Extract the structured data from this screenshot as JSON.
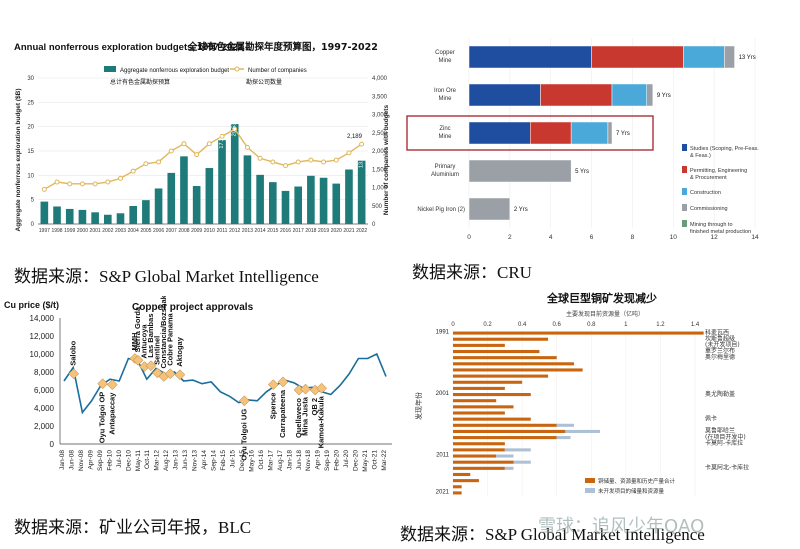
{
  "charts": {
    "exploration": {
      "title": "Annual nonferrous exploration budgets, 1997-2022",
      "title_cn": "全球有色金属勘探年度预算图，1997-2022",
      "legend_bar": "Aggregate nonferrous exploration budget",
      "legend_bar_cn": "总计有色金属勘探预算",
      "legend_line": "Number of companies",
      "legend_line_cn": "勘探公司数量",
      "ylabel_left": "Aggregate nonferrous exploration budget ($B)",
      "ylabel_right": "Number of companies with budgets",
      "annotation_peak": "20.53",
      "annotation_2022_bar": "13.01",
      "annotation_2022_line": "2,189",
      "annotation_mid": "17.23"
    },
    "cru": {
      "axis_max": "14",
      "legend": [
        "Studies (Scoping, Pre-Feas. & Feas.)",
        "Permitting, Engineering & Procurement",
        "Construction",
        "Commissioning",
        "Mining through to finished metal production"
      ]
    },
    "copper_price": {
      "ylabel": "Cu price ($/t)",
      "title": "Copper project approvals",
      "points_text": "",
      "approvals_count": "18"
    },
    "discovery": {
      "title": "全球巨型铜矿发现减少",
      "subtitle": "主要发现目前资源量（亿吨）",
      "ylabel": "发现年份",
      "legend": [
        "铜储量、资源量和历史产量合计",
        "未开发项目的储量和资源量"
      ]
    }
  },
  "chart_data": [
    {
      "type": "bar",
      "title": "Annual nonferrous exploration budgets, 1997-2022",
      "categories": [
        "1997",
        "1998",
        "1999",
        "2000",
        "2001",
        "2002",
        "2003",
        "2004",
        "2005",
        "2006",
        "2007",
        "2008",
        "2009",
        "2010",
        "2011",
        "2012",
        "2013",
        "2014",
        "2015",
        "2016",
        "2017",
        "2018",
        "2019",
        "2020",
        "2021",
        "2022"
      ],
      "series": [
        {
          "name": "Aggregate nonferrous exploration budget",
          "axis": "left",
          "values": [
            4.6,
            3.6,
            3.1,
            2.9,
            2.4,
            1.9,
            2.2,
            3.7,
            4.9,
            7.3,
            10.5,
            13.9,
            7.8,
            11.5,
            17.23,
            20.53,
            14.1,
            10.1,
            8.6,
            6.8,
            7.7,
            9.9,
            9.5,
            8.3,
            11.2,
            13.01
          ]
        },
        {
          "name": "Number of companies",
          "axis": "right",
          "type": "line",
          "values": [
            950,
            1150,
            1100,
            1100,
            1100,
            1150,
            1250,
            1450,
            1650,
            1700,
            2000,
            2200,
            1900,
            2200,
            2400,
            2600,
            2100,
            1800,
            1700,
            1600,
            1700,
            1750,
            1700,
            1750,
            1950,
            2189
          ]
        }
      ],
      "ylim_left": [
        0,
        30
      ],
      "ylim_right": [
        0,
        4000
      ],
      "source": "数据来源：S&P Global Market Intelligence"
    },
    {
      "type": "bar",
      "orientation": "horizontal-stacked",
      "categories": [
        "Copper Mine",
        "Iron Ore Mine",
        "Zinc Mine",
        "Primary Aluminium",
        "Nickel Pig Iron (2)"
      ],
      "series": [
        {
          "name": "Studies (Scoping, Pre-Feas. & Feas.)",
          "color": "#1f4ea0",
          "values": [
            6,
            3.5,
            3,
            0,
            0
          ]
        },
        {
          "name": "Permitting, Engineering & Procurement",
          "color": "#c8382e",
          "values": [
            4.5,
            3.5,
            2,
            0,
            0
          ]
        },
        {
          "name": "Construction",
          "color": "#4aa9d9",
          "values": [
            2,
            1.7,
            1.8,
            0,
            0
          ]
        },
        {
          "name": "Commissioning",
          "color": "#9aa0a6",
          "values": [
            0.5,
            0.3,
            0.2,
            5,
            2
          ]
        },
        {
          "name": "Mining through to finished metal production",
          "color": "#6e9a7c",
          "values": [
            0,
            0,
            0,
            0,
            0
          ]
        }
      ],
      "totals_labels": [
        "13 Yrs",
        "9 Yrs",
        "7 Yrs",
        "5 Yrs",
        "2 Yrs"
      ],
      "xlim": [
        0,
        14
      ],
      "xticks": [
        0,
        2,
        4,
        6,
        8,
        10,
        12,
        14
      ],
      "highlight": "Zinc Mine",
      "source": "数据来源：CRU"
    },
    {
      "type": "line",
      "title": "Copper project approvals",
      "ylabel": "Cu price ($/t)",
      "ylim": [
        0,
        14000
      ],
      "yticks": [
        0,
        2000,
        4000,
        6000,
        8000,
        10000,
        12000,
        14000
      ],
      "xticks": [
        "Jan-08",
        "Jun-08",
        "Nov-08",
        "Apr-09",
        "Sep-09",
        "Feb-10",
        "Jul-10",
        "Dec-10",
        "May-11",
        "Oct-11",
        "Mar-12",
        "Aug-12",
        "Jan-13",
        "Jun-13",
        "Nov-13",
        "Apr-14",
        "Sep-14",
        "Feb-15",
        "Jul-15",
        "Dec-15",
        "May-16",
        "Oct-16",
        "Mar-17",
        "Aug-17",
        "Jan-18",
        "Jun-18",
        "Nov-18",
        "Apr-19",
        "Sep-19",
        "Feb-20",
        "Jul-20",
        "Dec-20",
        "May-21",
        "Oct-21",
        "Mar-22"
      ],
      "series": [
        {
          "name": "Cu price",
          "values": [
            7000,
            8500,
            3500,
            4800,
            6500,
            7200,
            7000,
            9500,
            9300,
            7200,
            8400,
            7800,
            8000,
            7000,
            7100,
            6700,
            6900,
            5800,
            5300,
            4600,
            4900,
            4800,
            5800,
            6500,
            7100,
            6800,
            6200,
            6300,
            5800,
            5500,
            6500,
            7800,
            9500,
            9500,
            10000,
            7500
          ]
        }
      ],
      "approvals": [
        "Salobo",
        "Oyu Tolgoi OP",
        "Antapaccay",
        "MMH",
        "Sierra Gorda",
        "Antucoya",
        "Las Bambas",
        "Sentinel",
        "Constancia/Bozshakol",
        "Cobre Panama",
        "Aktogay",
        "Oyu Tolgoi UG",
        "Spence",
        "Carrapateena",
        "Quellaveco",
        "Mina Justa",
        "QB 2",
        "Kamoa-Kakula"
      ],
      "source": "数据来源：矿业公司年报，BLC"
    },
    {
      "type": "bar",
      "orientation": "horizontal-stacked",
      "title": "全球巨型铜矿发现减少",
      "xlabel": "主要发现目前资源量（亿吨）",
      "ylabel": "发现年份",
      "xticks": [
        "0",
        "0.2",
        "0.4",
        "0.6",
        "0.8",
        "1",
        "1.2",
        "1.4"
      ],
      "year_marks": [
        "1991",
        "2001",
        "2011",
        "2021"
      ],
      "annotations": [
        "科麦瓦西",
        "坎斯鲁超级",
        "(未开发项目)",
        "重罗兰尔布",
        "奥尔梅里德",
        "奥尤陶勒盖",
        "佩卡",
        "莫鲁耶哈兰",
        "(在项目开发中)",
        "卡莫阿-卡库拉",
        "卡莫阿北-卡库拉"
      ],
      "series": [
        {
          "name": "铜储量、资源量和历史产量合计",
          "color": "#c8650e",
          "values": [
            1.45,
            0.55,
            0.3,
            0.5,
            0.6,
            0.7,
            0.75,
            0.55,
            0.4,
            0.3,
            0.45,
            0.25,
            0.35,
            0.3,
            0.45,
            0.6,
            0.65,
            0.6,
            0.3,
            0.3,
            0.25,
            0.35,
            0.3,
            0.1,
            0.15,
            0.05,
            0.05
          ]
        },
        {
          "name": "未开发项目的储量和资源量",
          "color": "#aec0d6",
          "values": [
            0,
            0,
            0,
            0,
            0,
            0,
            0,
            0,
            0,
            0,
            0,
            0,
            0,
            0,
            0,
            0.1,
            0.2,
            0.08,
            0,
            0.15,
            0.1,
            0.1,
            0.05,
            0,
            0,
            0,
            0
          ]
        }
      ],
      "source": "数据来源：S&P Global Market Intelligence"
    }
  ],
  "sources": {
    "s1": "数据来源：S&P Global Market Intelligence",
    "s2": "数据来源：CRU",
    "s3": "数据来源：矿业公司年报，BLC",
    "s4": "数据来源：S&P Global Market Intelligence"
  },
  "watermark": "雪球：追风少年QAQ"
}
